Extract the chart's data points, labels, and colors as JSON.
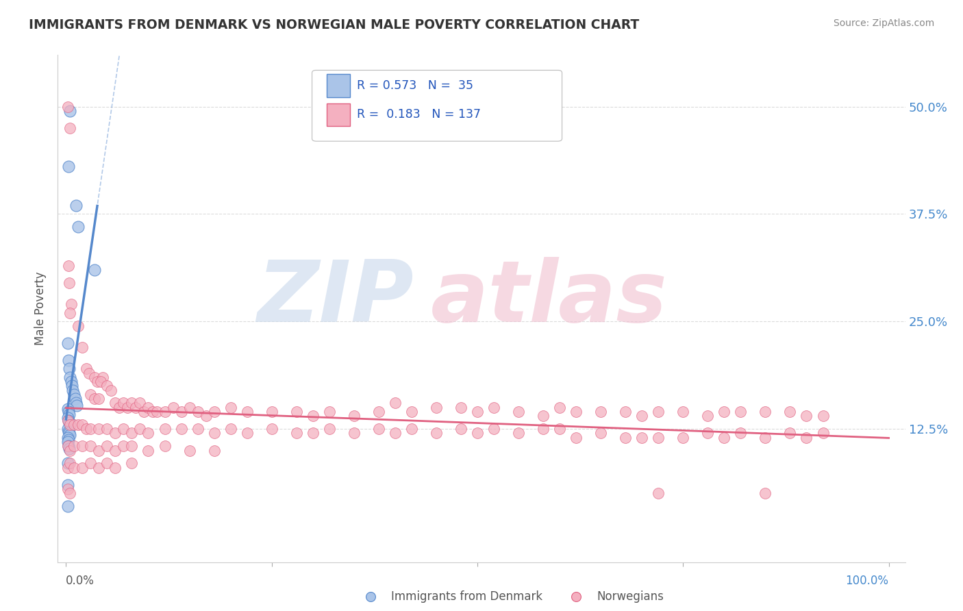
{
  "title": "IMMIGRANTS FROM DENMARK VS NORWEGIAN MALE POVERTY CORRELATION CHART",
  "source": "Source: ZipAtlas.com",
  "ylabel": "Male Poverty",
  "ytick_labels": [
    "12.5%",
    "25.0%",
    "37.5%",
    "50.0%"
  ],
  "ytick_values": [
    12.5,
    25.0,
    37.5,
    50.0
  ],
  "xlim": [
    -1.0,
    102.0
  ],
  "ylim": [
    -3.0,
    56.0
  ],
  "denmark_color": "#5588cc",
  "denmark_fill": "#aac4e8",
  "norway_color": "#e06080",
  "norway_fill": "#f4b0c0",
  "background_color": "#ffffff",
  "grid_color": "#cccccc",
  "title_color": "#333333",
  "watermark_zip_color": "#c8d8ec",
  "watermark_atlas_color": "#f0c0d0",
  "denmark_scatter": [
    [
      0.3,
      43.0
    ],
    [
      0.5,
      49.5
    ],
    [
      1.2,
      38.5
    ],
    [
      1.5,
      36.0
    ],
    [
      3.5,
      31.0
    ],
    [
      0.2,
      22.5
    ],
    [
      0.3,
      20.5
    ],
    [
      0.4,
      19.5
    ],
    [
      0.5,
      18.5
    ],
    [
      0.6,
      18.0
    ],
    [
      0.7,
      17.5
    ],
    [
      0.8,
      17.0
    ],
    [
      1.0,
      16.5
    ],
    [
      1.1,
      16.0
    ],
    [
      1.2,
      15.5
    ],
    [
      1.3,
      15.2
    ],
    [
      0.2,
      14.8
    ],
    [
      0.3,
      14.5
    ],
    [
      0.4,
      14.2
    ],
    [
      0.2,
      13.8
    ],
    [
      0.3,
      13.5
    ],
    [
      0.4,
      13.2
    ],
    [
      0.5,
      13.0
    ],
    [
      0.2,
      12.5
    ],
    [
      0.3,
      12.2
    ],
    [
      0.4,
      12.0
    ],
    [
      0.5,
      11.8
    ],
    [
      0.2,
      11.5
    ],
    [
      0.3,
      11.2
    ],
    [
      0.2,
      11.0
    ],
    [
      0.3,
      10.5
    ],
    [
      0.4,
      10.2
    ],
    [
      0.2,
      8.5
    ],
    [
      0.2,
      6.0
    ],
    [
      0.2,
      3.5
    ]
  ],
  "norway_scatter": [
    [
      0.2,
      50.0
    ],
    [
      0.5,
      47.5
    ],
    [
      0.3,
      31.5
    ],
    [
      0.4,
      29.5
    ],
    [
      0.6,
      27.0
    ],
    [
      0.5,
      26.0
    ],
    [
      1.5,
      24.5
    ],
    [
      2.0,
      22.0
    ],
    [
      2.5,
      19.5
    ],
    [
      2.8,
      19.0
    ],
    [
      3.5,
      18.5
    ],
    [
      3.8,
      18.0
    ],
    [
      4.5,
      18.5
    ],
    [
      4.2,
      18.0
    ],
    [
      5.0,
      17.5
    ],
    [
      5.5,
      17.0
    ],
    [
      3.0,
      16.5
    ],
    [
      3.5,
      16.0
    ],
    [
      4.0,
      16.0
    ],
    [
      6.0,
      15.5
    ],
    [
      6.5,
      15.0
    ],
    [
      7.0,
      15.5
    ],
    [
      7.5,
      15.0
    ],
    [
      8.0,
      15.5
    ],
    [
      8.5,
      15.0
    ],
    [
      9.0,
      15.5
    ],
    [
      9.5,
      14.5
    ],
    [
      10.0,
      15.0
    ],
    [
      10.5,
      14.5
    ],
    [
      11.0,
      14.5
    ],
    [
      12.0,
      14.5
    ],
    [
      13.0,
      15.0
    ],
    [
      14.0,
      14.5
    ],
    [
      15.0,
      15.0
    ],
    [
      16.0,
      14.5
    ],
    [
      17.0,
      14.0
    ],
    [
      18.0,
      14.5
    ],
    [
      20.0,
      15.0
    ],
    [
      22.0,
      14.5
    ],
    [
      25.0,
      14.5
    ],
    [
      28.0,
      14.5
    ],
    [
      30.0,
      14.0
    ],
    [
      32.0,
      14.5
    ],
    [
      35.0,
      14.0
    ],
    [
      38.0,
      14.5
    ],
    [
      40.0,
      15.5
    ],
    [
      42.0,
      14.5
    ],
    [
      45.0,
      15.0
    ],
    [
      48.0,
      15.0
    ],
    [
      50.0,
      14.5
    ],
    [
      52.0,
      15.0
    ],
    [
      55.0,
      14.5
    ],
    [
      58.0,
      14.0
    ],
    [
      60.0,
      15.0
    ],
    [
      62.0,
      14.5
    ],
    [
      65.0,
      14.5
    ],
    [
      68.0,
      14.5
    ],
    [
      70.0,
      14.0
    ],
    [
      72.0,
      14.5
    ],
    [
      75.0,
      14.5
    ],
    [
      78.0,
      14.0
    ],
    [
      80.0,
      14.5
    ],
    [
      82.0,
      14.5
    ],
    [
      85.0,
      14.5
    ],
    [
      88.0,
      14.5
    ],
    [
      90.0,
      14.0
    ],
    [
      92.0,
      14.0
    ],
    [
      0.2,
      13.5
    ],
    [
      0.5,
      13.0
    ],
    [
      1.0,
      13.0
    ],
    [
      1.5,
      13.0
    ],
    [
      2.0,
      13.0
    ],
    [
      2.5,
      12.5
    ],
    [
      3.0,
      12.5
    ],
    [
      4.0,
      12.5
    ],
    [
      5.0,
      12.5
    ],
    [
      6.0,
      12.0
    ],
    [
      7.0,
      12.5
    ],
    [
      8.0,
      12.0
    ],
    [
      9.0,
      12.5
    ],
    [
      10.0,
      12.0
    ],
    [
      12.0,
      12.5
    ],
    [
      14.0,
      12.5
    ],
    [
      16.0,
      12.5
    ],
    [
      18.0,
      12.0
    ],
    [
      20.0,
      12.5
    ],
    [
      22.0,
      12.0
    ],
    [
      25.0,
      12.5
    ],
    [
      28.0,
      12.0
    ],
    [
      30.0,
      12.0
    ],
    [
      32.0,
      12.5
    ],
    [
      35.0,
      12.0
    ],
    [
      38.0,
      12.5
    ],
    [
      40.0,
      12.0
    ],
    [
      42.0,
      12.5
    ],
    [
      45.0,
      12.0
    ],
    [
      48.0,
      12.5
    ],
    [
      50.0,
      12.0
    ],
    [
      52.0,
      12.5
    ],
    [
      55.0,
      12.0
    ],
    [
      58.0,
      12.5
    ],
    [
      60.0,
      12.5
    ],
    [
      62.0,
      11.5
    ],
    [
      65.0,
      12.0
    ],
    [
      68.0,
      11.5
    ],
    [
      70.0,
      11.5
    ],
    [
      72.0,
      11.5
    ],
    [
      75.0,
      11.5
    ],
    [
      78.0,
      12.0
    ],
    [
      80.0,
      11.5
    ],
    [
      82.0,
      12.0
    ],
    [
      85.0,
      11.5
    ],
    [
      88.0,
      12.0
    ],
    [
      90.0,
      11.5
    ],
    [
      92.0,
      12.0
    ],
    [
      0.2,
      10.5
    ],
    [
      0.5,
      10.0
    ],
    [
      1.0,
      10.5
    ],
    [
      2.0,
      10.5
    ],
    [
      3.0,
      10.5
    ],
    [
      4.0,
      10.0
    ],
    [
      5.0,
      10.5
    ],
    [
      6.0,
      10.0
    ],
    [
      7.0,
      10.5
    ],
    [
      8.0,
      10.5
    ],
    [
      10.0,
      10.0
    ],
    [
      12.0,
      10.5
    ],
    [
      15.0,
      10.0
    ],
    [
      18.0,
      10.0
    ],
    [
      0.2,
      8.0
    ],
    [
      0.5,
      8.5
    ],
    [
      1.0,
      8.0
    ],
    [
      2.0,
      8.0
    ],
    [
      3.0,
      8.5
    ],
    [
      4.0,
      8.0
    ],
    [
      5.0,
      8.5
    ],
    [
      6.0,
      8.0
    ],
    [
      8.0,
      8.5
    ],
    [
      0.2,
      5.5
    ],
    [
      0.5,
      5.0
    ],
    [
      72.0,
      5.0
    ],
    [
      85.0,
      5.0
    ]
  ]
}
